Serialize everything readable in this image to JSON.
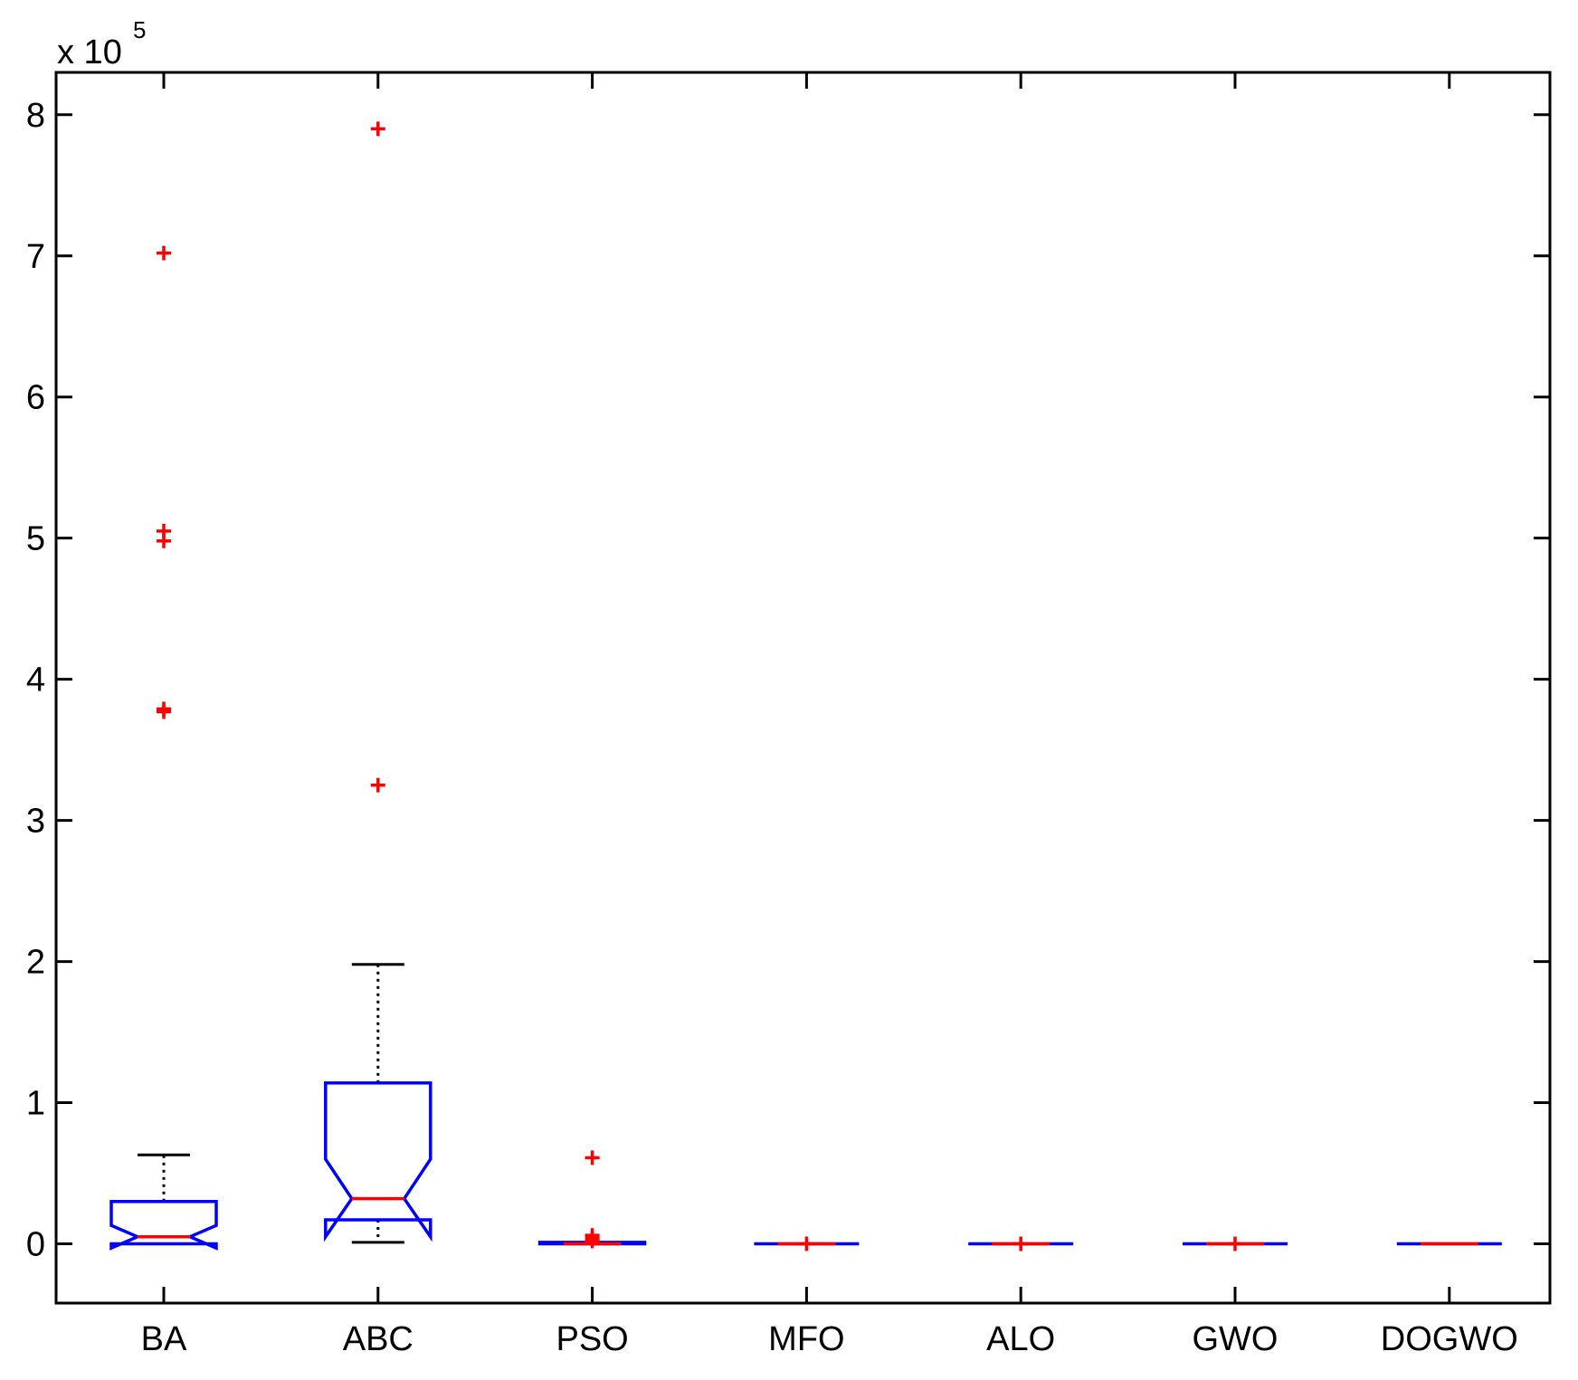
{
  "chart_data": {
    "type": "box",
    "xlabel": "",
    "ylabel": "",
    "exponent_base": "x 10",
    "exponent_power": "5",
    "ylim": [
      -0.42,
      8.3
    ],
    "yticks": [
      "0",
      "1",
      "2",
      "3",
      "4",
      "5",
      "6",
      "7",
      "8"
    ],
    "categories": [
      "BA",
      "ABC",
      "PSO",
      "MFO",
      "ALO",
      "GWO",
      "DOGWO"
    ],
    "colors": {
      "box": "#0000ff",
      "median": "#ff0000",
      "whisker": "#000000",
      "outlier": "#ff0000"
    },
    "notched": true,
    "grid": false,
    "boxes": [
      {
        "name": "BA",
        "q1": 0.0,
        "median": 0.05,
        "q3": 0.3,
        "whisker_low": 0.0,
        "whisker_high": 0.63,
        "notch_low": -0.03,
        "notch_high": 0.13,
        "outliers": [
          7.02,
          5.05,
          4.98,
          3.79,
          3.77
        ]
      },
      {
        "name": "ABC",
        "q1": 0.17,
        "median": 0.32,
        "q3": 1.14,
        "whisker_low": 0.01,
        "whisker_high": 1.98,
        "notch_low": 0.05,
        "notch_high": 0.6,
        "outliers": [
          7.9,
          3.25
        ]
      },
      {
        "name": "PSO",
        "q1": 0.0,
        "median": 0.0,
        "q3": 0.01,
        "whisker_low": 0.0,
        "whisker_high": 0.01,
        "notch_low": 0.0,
        "notch_high": 0.0,
        "outliers": [
          0.61,
          0.06,
          0.04,
          0.02
        ]
      },
      {
        "name": "MFO",
        "q1": 0.0,
        "median": 0.0,
        "q3": 0.0,
        "whisker_low": 0.0,
        "whisker_high": 0.0,
        "notch_low": 0.0,
        "notch_high": 0.0,
        "outliers": [
          0.0
        ]
      },
      {
        "name": "ALO",
        "q1": 0.0,
        "median": 0.0,
        "q3": 0.0,
        "whisker_low": 0.0,
        "whisker_high": 0.0,
        "notch_low": 0.0,
        "notch_high": 0.0,
        "outliers": [
          0.0
        ]
      },
      {
        "name": "GWO",
        "q1": 0.0,
        "median": 0.0,
        "q3": 0.0,
        "whisker_low": 0.0,
        "whisker_high": 0.0,
        "notch_low": 0.0,
        "notch_high": 0.0,
        "outliers": [
          0.0
        ]
      },
      {
        "name": "DOGWO",
        "q1": 0.0,
        "median": 0.0,
        "q3": 0.0,
        "whisker_low": 0.0,
        "whisker_high": 0.0,
        "notch_low": 0.0,
        "notch_high": 0.0,
        "outliers": []
      }
    ]
  }
}
